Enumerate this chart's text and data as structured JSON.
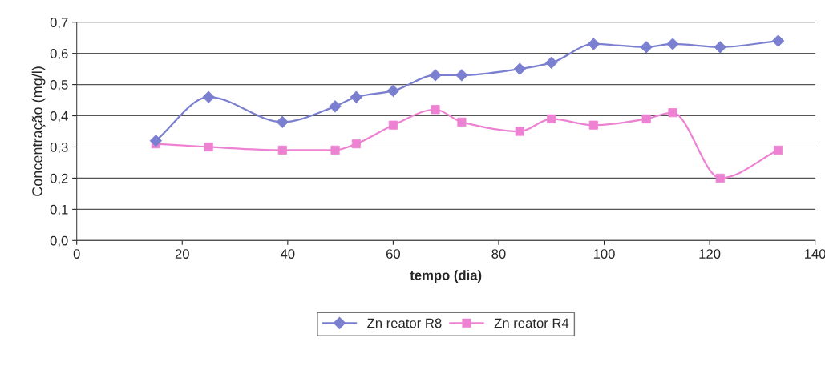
{
  "chart_data": {
    "type": "line",
    "xlabel": "tempo (dia)",
    "ylabel": "Concentração (mg/l)",
    "xlim": [
      0,
      140
    ],
    "xticks": [
      0,
      20,
      40,
      60,
      80,
      100,
      120,
      140
    ],
    "ylim": [
      0,
      0.7
    ],
    "yticks": [
      {
        "value": 0,
        "label": "0,0"
      },
      {
        "value": 0.1,
        "label": "0,1"
      },
      {
        "value": 0.2,
        "label": "0,2"
      },
      {
        "value": 0.3,
        "label": "0,3"
      },
      {
        "value": 0.4,
        "label": "0,4"
      },
      {
        "value": 0.5,
        "label": "0,5"
      },
      {
        "value": 0.6,
        "label": "0,6"
      },
      {
        "value": 0.7,
        "label": "0,7"
      }
    ],
    "grid": "y",
    "legend": "bottom",
    "x": [
      15,
      25,
      39,
      49,
      53,
      60,
      68,
      73,
      84,
      90,
      98,
      108,
      113,
      122,
      133
    ],
    "series": [
      {
        "name": "Zn reator R8",
        "color": "#7b7fd0",
        "marker": "diamond",
        "values": [
          0.32,
          0.46,
          0.38,
          0.43,
          0.46,
          0.48,
          0.53,
          0.53,
          0.55,
          0.57,
          0.63,
          0.62,
          0.63,
          0.62,
          0.64
        ]
      },
      {
        "name": "Zn reator R4",
        "color": "#ee82d2",
        "marker": "square",
        "values": [
          0.31,
          0.3,
          0.29,
          0.29,
          0.31,
          0.37,
          0.42,
          0.38,
          0.35,
          0.39,
          0.37,
          0.39,
          0.41,
          0.2,
          0.29
        ]
      }
    ]
  }
}
